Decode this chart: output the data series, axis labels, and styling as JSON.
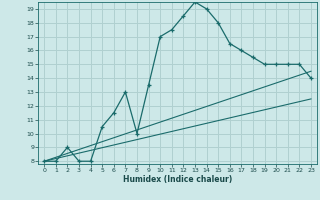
{
  "xlabel": "Humidex (Indice chaleur)",
  "ylabel": "",
  "bg_color": "#cde8e8",
  "grid_color": "#b0d0d0",
  "line_color": "#1a6b6b",
  "xlim": [
    -0.5,
    23.5
  ],
  "ylim": [
    7.8,
    19.5
  ],
  "xticks": [
    0,
    1,
    2,
    3,
    4,
    5,
    6,
    7,
    8,
    9,
    10,
    11,
    12,
    13,
    14,
    15,
    16,
    17,
    18,
    19,
    20,
    21,
    22,
    23
  ],
  "yticks": [
    8,
    9,
    10,
    11,
    12,
    13,
    14,
    15,
    16,
    17,
    18,
    19
  ],
  "curve_x": [
    0,
    1,
    2,
    3,
    4,
    5,
    6,
    7,
    8,
    9,
    10,
    11,
    12,
    13,
    14,
    15,
    16,
    17,
    18,
    19,
    20,
    21,
    22,
    23
  ],
  "curve_y": [
    8.0,
    8.0,
    9.0,
    8.0,
    8.0,
    10.5,
    11.5,
    13.0,
    10.0,
    13.5,
    17.0,
    17.5,
    18.5,
    19.5,
    19.0,
    18.0,
    16.5,
    16.0,
    15.5,
    15.0,
    15.0,
    15.0,
    15.0,
    14.0
  ],
  "line1_x": [
    0,
    23
  ],
  "line1_y": [
    8.0,
    14.5
  ],
  "line2_x": [
    0,
    23
  ],
  "line2_y": [
    8.0,
    12.5
  ]
}
